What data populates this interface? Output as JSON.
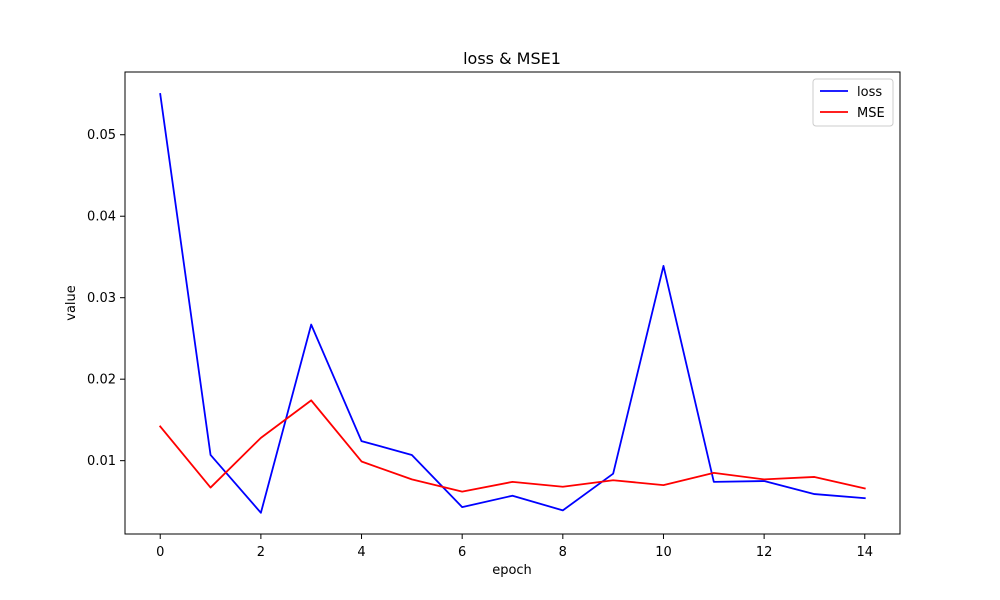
{
  "chart_data": {
    "type": "line",
    "title": "loss & MSE1",
    "xlabel": "epoch",
    "ylabel": "value",
    "x": [
      0,
      1,
      2,
      3,
      4,
      5,
      6,
      7,
      8,
      9,
      10,
      11,
      12,
      13,
      14
    ],
    "xlim": [
      -0.7,
      14.7
    ],
    "ylim": [
      0.001,
      0.0577
    ],
    "xticks": [
      0,
      2,
      4,
      6,
      8,
      10,
      12,
      14
    ],
    "xtick_labels": [
      "0",
      "2",
      "4",
      "6",
      "8",
      "10",
      "12",
      "14"
    ],
    "yticks": [
      0.01,
      0.02,
      0.03,
      0.04,
      0.05
    ],
    "ytick_labels": [
      "0.01",
      "0.02",
      "0.03",
      "0.04",
      "0.05"
    ],
    "grid": false,
    "legend_position": "top-right",
    "series": [
      {
        "name": "loss",
        "color": "#0000ff",
        "values": [
          0.055,
          0.0107,
          0.0036,
          0.0267,
          0.0124,
          0.0107,
          0.0043,
          0.0057,
          0.0039,
          0.0084,
          0.0339,
          0.0074,
          0.0075,
          0.0059,
          0.0054
        ]
      },
      {
        "name": "MSE",
        "color": "#ff0000",
        "values": [
          0.0142,
          0.0067,
          0.0128,
          0.0174,
          0.0099,
          0.0077,
          0.0062,
          0.0074,
          0.0068,
          0.0076,
          0.007,
          0.0085,
          0.0077,
          0.008,
          0.0066
        ]
      }
    ]
  }
}
